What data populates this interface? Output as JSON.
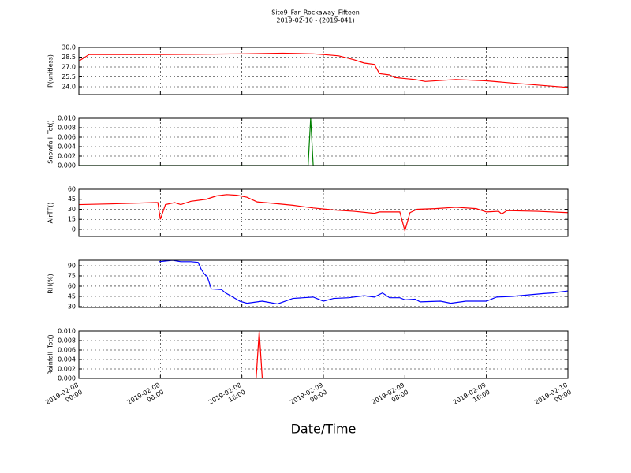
{
  "title": "Site9_Far_Rockaway_Fifteen",
  "subtitle": "2019-02-10 - (2019-041)",
  "xlabel": "Date/Time",
  "chart_data": [
    {
      "type": "line",
      "ylabel": "P(unitless)",
      "color": "#ff0000",
      "xlim": [
        "2019-02-08 00:00",
        "2019-02-10 00:00"
      ],
      "ylim": [
        22.8,
        30
      ],
      "yticks": [
        {
          "value": 24,
          "label": "24.0"
        },
        25.5,
        {
          "value": 27,
          "label": "27.0"
        },
        28.5,
        {
          "value": 30,
          "label": "30.0"
        }
      ],
      "x": [
        "2019-02-08 00:00",
        "2019-02-08 01:00",
        "2019-02-08 08:00",
        "2019-02-08 16:00",
        "2019-02-08 20:00",
        "2019-02-08 23:00",
        "2019-02-09 00:00",
        "2019-02-09 01:30",
        "2019-02-09 03:00",
        "2019-02-09 04:00",
        "2019-02-09 05:00",
        "2019-02-09 05:30",
        "2019-02-09 06:30",
        "2019-02-09 07:00",
        "2019-02-09 09:00",
        "2019-02-09 10:00",
        "2019-02-09 13:00",
        "2019-02-09 16:00",
        "2019-02-09 19:00",
        "2019-02-10 00:00"
      ],
      "values": [
        27.9,
        28.9,
        28.9,
        29.0,
        29.1,
        29.0,
        28.9,
        28.7,
        28.1,
        27.6,
        27.4,
        26.0,
        25.8,
        25.4,
        25.1,
        24.8,
        25.1,
        24.9,
        24.5,
        23.9
      ]
    },
    {
      "type": "line",
      "ylabel": "Snowfall_Tot()",
      "color": "#008000",
      "xlim": [
        "2019-02-08 00:00",
        "2019-02-10 00:00"
      ],
      "ylim": [
        0,
        0.01
      ],
      "yticks": [
        {
          "value": 0,
          "label": "0.000"
        },
        {
          "value": 0.002,
          "label": "0.002"
        },
        {
          "value": 0.004,
          "label": "0.004"
        },
        {
          "value": 0.006,
          "label": "0.006"
        },
        {
          "value": 0.008,
          "label": "0.008"
        },
        {
          "value": 0.01,
          "label": "0.010"
        }
      ],
      "x": [
        "2019-02-08 00:00",
        "2019-02-08 22:30",
        "2019-02-08 22:45",
        "2019-02-08 23:00",
        "2019-02-10 00:00"
      ],
      "values": [
        0,
        0,
        0.01,
        0,
        0
      ]
    },
    {
      "type": "line",
      "ylabel": "AirTF()",
      "color": "#ff0000",
      "xlim": [
        "2019-02-08 00:00",
        "2019-02-10 00:00"
      ],
      "ylim": [
        -10.6,
        60
      ],
      "yticks": [
        0,
        15,
        30,
        45,
        60
      ],
      "x": [
        "2019-02-08 00:00",
        "2019-02-08 03:00",
        "2019-02-08 07:30",
        "2019-02-08 07:45",
        "2019-02-08 08:00",
        "2019-02-08 08:30",
        "2019-02-08 09:24",
        "2019-02-08 10:00",
        "2019-02-08 11:00",
        "2019-02-08 12:30",
        "2019-02-08 13:30",
        "2019-02-08 14:30",
        "2019-02-08 15:30",
        "2019-02-08 16:30",
        "2019-02-08 17:30",
        "2019-02-08 19:00",
        "2019-02-08 21:00",
        "2019-02-08 23:00",
        "2019-02-09 01:00",
        "2019-02-09 03:00",
        "2019-02-09 05:00",
        "2019-02-09 05:30",
        "2019-02-09 07:30",
        "2019-02-09 08:00",
        "2019-02-09 08:30",
        "2019-02-09 09:12",
        "2019-02-09 11:00",
        "2019-02-09 13:00",
        "2019-02-09 15:00",
        "2019-02-09 16:00",
        "2019-02-09 17:12",
        "2019-02-09 17:30",
        "2019-02-09 18:00",
        "2019-02-09 21:00",
        "2019-02-10 00:00"
      ],
      "values": [
        37,
        38,
        40,
        40,
        15,
        37,
        40,
        37,
        42,
        45,
        50,
        52,
        51,
        48,
        41,
        39,
        36,
        32,
        29,
        27,
        24,
        26,
        26,
        -2,
        25,
        30,
        31,
        33,
        31,
        26,
        27,
        23,
        28,
        27,
        25
      ]
    },
    {
      "type": "line",
      "ylabel": "RH(%)",
      "color": "#0000ff",
      "xlim": [
        "2019-02-08 00:00",
        "2019-02-10 00:00"
      ],
      "ylim": [
        28.8,
        98.1
      ],
      "yticks": [
        30,
        45,
        60,
        75,
        90
      ],
      "x": [
        "2019-02-08 07:54",
        "2019-02-08 09:12",
        "2019-02-08 10:00",
        "2019-02-08 11:00",
        "2019-02-08 11:42",
        "2019-02-08 12:00",
        "2019-02-08 12:18",
        "2019-02-08 12:36",
        "2019-02-08 13:00",
        "2019-02-08 14:00",
        "2019-02-08 14:24",
        "2019-02-08 15:00",
        "2019-02-08 15:48",
        "2019-02-08 16:30",
        "2019-02-08 18:00",
        "2019-02-08 19:30",
        "2019-02-08 21:00",
        "2019-02-08 22:00",
        "2019-02-08 23:00",
        "2019-02-08 23:30",
        "2019-02-09 00:00",
        "2019-02-09 01:00",
        "2019-02-09 02:30",
        "2019-02-09 04:00",
        "2019-02-09 05:00",
        "2019-02-09 05:48",
        "2019-02-09 06:30",
        "2019-02-09 07:30",
        "2019-02-09 08:00",
        "2019-02-09 09:00",
        "2019-02-09 09:30",
        "2019-02-09 11:30",
        "2019-02-09 12:30",
        "2019-02-09 14:00",
        "2019-02-09 16:00",
        "2019-02-09 17:00",
        "2019-02-09 18:30",
        "2019-02-09 20:00",
        "2019-02-09 21:30",
        "2019-02-09 22:30",
        "2019-02-10 00:00"
      ],
      "values": [
        96,
        98,
        96,
        96,
        95,
        85,
        78,
        74,
        56,
        55,
        50,
        45,
        38,
        35,
        38,
        34,
        42,
        43,
        44,
        41,
        38,
        42,
        43,
        46,
        44,
        50,
        43,
        43,
        40,
        41,
        37,
        38,
        35,
        38,
        38,
        44,
        45,
        47,
        49,
        50,
        53
      ]
    },
    {
      "type": "line",
      "ylabel": "Rainfall_Tot()",
      "color": "#ff0000",
      "xlim": [
        "2019-02-08 00:00",
        "2019-02-10 00:00"
      ],
      "ylim": [
        0,
        0.01
      ],
      "yticks": [
        {
          "value": 0,
          "label": "0.000"
        },
        {
          "value": 0.002,
          "label": "0.002"
        },
        {
          "value": 0.004,
          "label": "0.004"
        },
        {
          "value": 0.006,
          "label": "0.006"
        },
        {
          "value": 0.008,
          "label": "0.008"
        },
        {
          "value": 0.01,
          "label": "0.010"
        }
      ],
      "xticks": [
        "2019-02-08 00:00",
        "2019-02-08 08:00",
        "2019-02-08 16:00",
        "2019-02-09 00:00",
        "2019-02-09 08:00",
        "2019-02-09 16:00",
        "2019-02-10 00:00"
      ],
      "x": [
        "2019-02-08 00:00",
        "2019-02-08 17:24",
        "2019-02-08 17:42",
        "2019-02-08 18:00",
        "2019-02-10 00:00"
      ],
      "values": [
        0,
        0,
        0.01,
        0,
        0
      ]
    }
  ]
}
